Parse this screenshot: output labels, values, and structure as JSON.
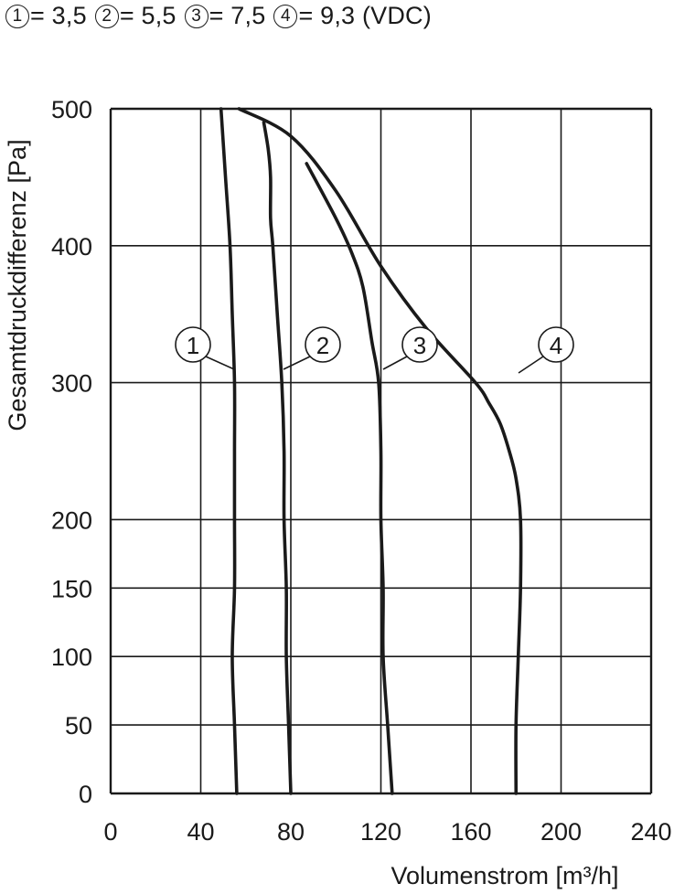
{
  "chart_data": {
    "type": "line",
    "title": "(VDC)",
    "legend": [
      {
        "id": "1",
        "value": "3,5"
      },
      {
        "id": "2",
        "value": "5,5"
      },
      {
        "id": "3",
        "value": "7,5"
      },
      {
        "id": "4",
        "value": "9,3"
      }
    ],
    "xlabel": "Volumenstrom [m³/h]",
    "ylabel": "Gesamtdruckdifferenz [Pa]",
    "xlim": [
      0,
      240
    ],
    "xticks": [
      0,
      40,
      80,
      120,
      160,
      200,
      240
    ],
    "xtick_labels": [
      "0",
      "40",
      "80",
      "120",
      "160",
      "200",
      "240"
    ],
    "ylim": [
      0,
      500
    ],
    "yticks": [
      0,
      50,
      100,
      150,
      200,
      300,
      400,
      500
    ],
    "ytick_labels": [
      "0",
      "50",
      "100",
      "150",
      "200",
      "300",
      "400",
      "500"
    ],
    "grid": true,
    "series": [
      {
        "name": "1",
        "label": "1",
        "points": [
          [
            49,
            500
          ],
          [
            51,
            450
          ],
          [
            53,
            400
          ],
          [
            54,
            350
          ],
          [
            55,
            300
          ],
          [
            55,
            250
          ],
          [
            55,
            200
          ],
          [
            55,
            150
          ],
          [
            54,
            100
          ],
          [
            55,
            50
          ],
          [
            56,
            0
          ]
        ]
      },
      {
        "name": "2",
        "label": "2",
        "points": [
          [
            68,
            490
          ],
          [
            70,
            470
          ],
          [
            71,
            450
          ],
          [
            71,
            420
          ],
          [
            72,
            400
          ],
          [
            74,
            350
          ],
          [
            76,
            300
          ],
          [
            77,
            250
          ],
          [
            77,
            200
          ],
          [
            78,
            150
          ],
          [
            78,
            100
          ],
          [
            79,
            50
          ],
          [
            80,
            0
          ]
        ]
      },
      {
        "name": "3",
        "label": "3",
        "points": [
          [
            87,
            460
          ],
          [
            100,
            420
          ],
          [
            107,
            395
          ],
          [
            112,
            370
          ],
          [
            116,
            330
          ],
          [
            119,
            300
          ],
          [
            120,
            250
          ],
          [
            120,
            200
          ],
          [
            121,
            150
          ],
          [
            121,
            100
          ],
          [
            123,
            50
          ],
          [
            125,
            0
          ]
        ]
      },
      {
        "name": "4",
        "label": "4",
        "points": [
          [
            57,
            500
          ],
          [
            80,
            480
          ],
          [
            100,
            440
          ],
          [
            120,
            385
          ],
          [
            140,
            340
          ],
          [
            162,
            300
          ],
          [
            168,
            285
          ],
          [
            173,
            270
          ],
          [
            177,
            250
          ],
          [
            180,
            230
          ],
          [
            182,
            200
          ],
          [
            182,
            150
          ],
          [
            181,
            100
          ],
          [
            180,
            50
          ],
          [
            180,
            0
          ]
        ]
      }
    ]
  }
}
